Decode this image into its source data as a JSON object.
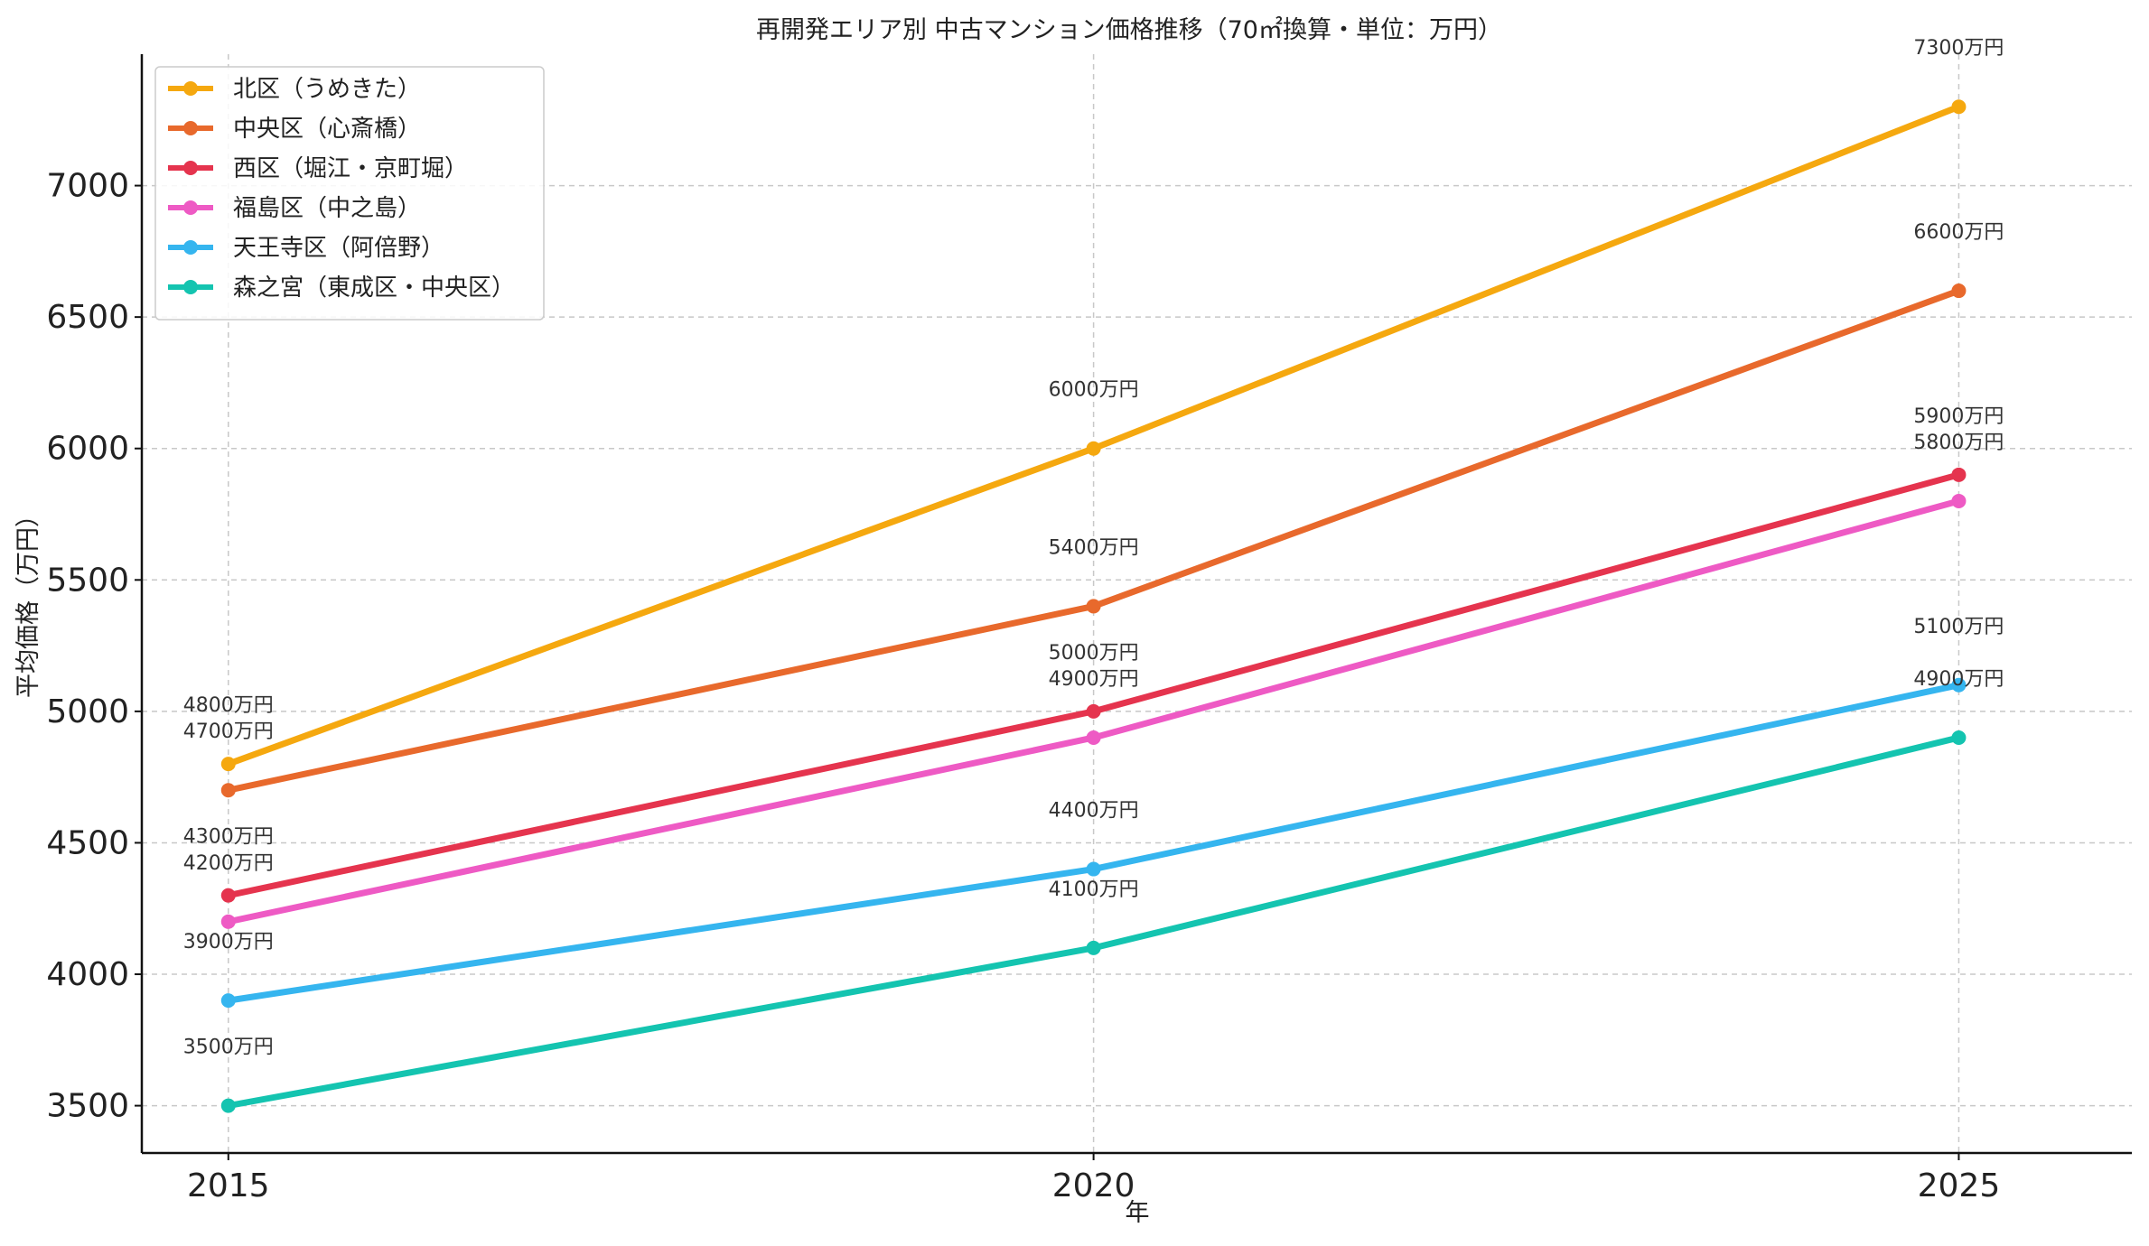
{
  "chart_data": {
    "type": "line",
    "title": "再開発エリア別 中古マンション価格推移（70㎡換算・単位：万円）",
    "xlabel": "年",
    "ylabel": "平均価格（万円）",
    "x": [
      2015,
      2020,
      2025
    ],
    "x_tick_labels": [
      "2015",
      "2020",
      "2025"
    ],
    "y_ticks": [
      3500,
      4000,
      4500,
      5000,
      5500,
      6000,
      6500,
      7000
    ],
    "y_tick_labels": [
      "3500",
      "4000",
      "4500",
      "5000",
      "5500",
      "6000",
      "6500",
      "7000"
    ],
    "ylim": [
      3320,
      7500
    ],
    "xlim": [
      2014.5,
      2026.0
    ],
    "grid": true,
    "legend_position": "top-left",
    "value_suffix": "万円",
    "series": [
      {
        "name": "北区（うめきた）",
        "values": [
          4800,
          6000,
          7300
        ],
        "color": "#F5A80F",
        "data_labels": [
          "4800万円",
          "6000万円",
          "7300万円"
        ]
      },
      {
        "name": "中央区（心斎橋）",
        "values": [
          4700,
          5400,
          6600
        ],
        "color": "#E8692C",
        "data_labels": [
          "4700万円",
          "5400万円",
          "6600万円"
        ]
      },
      {
        "name": "西区（堀江・京町堀）",
        "values": [
          4300,
          5000,
          5900
        ],
        "color": "#E5344E",
        "data_labels": [
          "4300万円",
          "5000万円",
          "5900万円"
        ]
      },
      {
        "name": "福島区（中之島）",
        "values": [
          4200,
          4900,
          5800
        ],
        "color": "#EE5AC4",
        "data_labels": [
          "4200万円",
          "4900万円",
          "5800万円"
        ]
      },
      {
        "name": "天王寺区（阿倍野）",
        "values": [
          3900,
          4400,
          5100
        ],
        "color": "#35B5EF",
        "data_labels": [
          "3900万円",
          "4400万円",
          "5100万円"
        ]
      },
      {
        "name": "森之宮（東成区・中央区）",
        "values": [
          3500,
          4100,
          4900
        ],
        "color": "#14C4B0",
        "data_labels": [
          "3500万円",
          "4100万円",
          "4900万円"
        ]
      }
    ]
  }
}
